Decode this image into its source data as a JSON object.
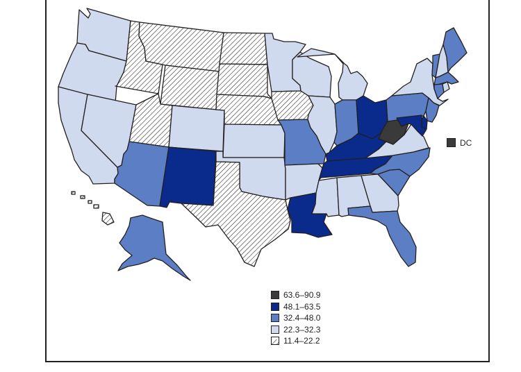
{
  "colors": {
    "c5": "#3a3a3a",
    "c4": "#0a2a8c",
    "c3": "#5b7ec4",
    "c2": "#cfdaee",
    "c1": "hatch",
    "outline": "#231f20"
  },
  "legend": {
    "items": [
      {
        "label": "63.6–90.9",
        "cls": "c5"
      },
      {
        "label": "48.1–63.5",
        "cls": "c4"
      },
      {
        "label": "32.4–48.0",
        "cls": "c3"
      },
      {
        "label": "22.3–32.3",
        "cls": "c2"
      },
      {
        "label": "11.4–22.2",
        "cls": "c1"
      }
    ]
  },
  "dc": {
    "label": "DC",
    "cls": "c5"
  },
  "states": [
    {
      "id": "WA",
      "cls": "c2"
    },
    {
      "id": "OR",
      "cls": "c2"
    },
    {
      "id": "CA",
      "cls": "c2"
    },
    {
      "id": "NV",
      "cls": "c2"
    },
    {
      "id": "ID",
      "cls": "c1"
    },
    {
      "id": "MT",
      "cls": "c1"
    },
    {
      "id": "WY",
      "cls": "c1"
    },
    {
      "id": "UT",
      "cls": "c1"
    },
    {
      "id": "AZ",
      "cls": "c3"
    },
    {
      "id": "CO",
      "cls": "c2"
    },
    {
      "id": "NM",
      "cls": "c4"
    },
    {
      "id": "ND",
      "cls": "c1"
    },
    {
      "id": "SD",
      "cls": "c1"
    },
    {
      "id": "NE",
      "cls": "c1"
    },
    {
      "id": "KS",
      "cls": "c2"
    },
    {
      "id": "OK",
      "cls": "c2"
    },
    {
      "id": "TX",
      "cls": "c1"
    },
    {
      "id": "MN",
      "cls": "c2"
    },
    {
      "id": "IA",
      "cls": "c1"
    },
    {
      "id": "MO",
      "cls": "c3"
    },
    {
      "id": "AR",
      "cls": "c2"
    },
    {
      "id": "LA",
      "cls": "c4"
    },
    {
      "id": "WI",
      "cls": "c2"
    },
    {
      "id": "IL",
      "cls": "c2"
    },
    {
      "id": "MI",
      "cls": "c2"
    },
    {
      "id": "IN",
      "cls": "c3"
    },
    {
      "id": "OH",
      "cls": "c4"
    },
    {
      "id": "KY",
      "cls": "c4"
    },
    {
      "id": "TN",
      "cls": "c4"
    },
    {
      "id": "MS",
      "cls": "c2"
    },
    {
      "id": "AL",
      "cls": "c2"
    },
    {
      "id": "GA",
      "cls": "c2"
    },
    {
      "id": "FL",
      "cls": "c3"
    },
    {
      "id": "SC",
      "cls": "c3"
    },
    {
      "id": "NC",
      "cls": "c3"
    },
    {
      "id": "VA",
      "cls": "c2"
    },
    {
      "id": "WV",
      "cls": "c5"
    },
    {
      "id": "PA",
      "cls": "c3"
    },
    {
      "id": "NY",
      "cls": "c2"
    },
    {
      "id": "VT",
      "cls": "c3"
    },
    {
      "id": "NH",
      "cls": "c2"
    },
    {
      "id": "ME",
      "cls": "c3"
    },
    {
      "id": "MA",
      "cls": "c3"
    },
    {
      "id": "CT",
      "cls": "c3"
    },
    {
      "id": "RI",
      "cls": "c2"
    },
    {
      "id": "NJ",
      "cls": "c3"
    },
    {
      "id": "DE",
      "cls": "c4"
    },
    {
      "id": "MD",
      "cls": "c4"
    },
    {
      "id": "AK",
      "cls": "c3"
    },
    {
      "id": "HI",
      "cls": "c1"
    }
  ]
}
